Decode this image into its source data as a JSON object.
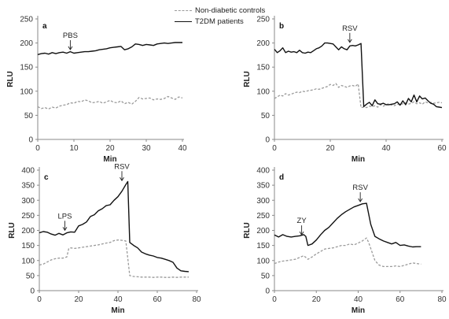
{
  "legend": {
    "items": [
      {
        "label": "Non-diabetic controls",
        "style": "dashed",
        "color": "#9a9a9a"
      },
      {
        "label": "T2DM patients",
        "style": "solid",
        "color": "#111111"
      }
    ]
  },
  "chart_data": [
    {
      "type": "line",
      "panel_label": "a",
      "xlabel": "Min",
      "ylabel": "RLU",
      "xlim": [
        0,
        40
      ],
      "ylim": [
        0,
        250
      ],
      "xticks": [
        0,
        10,
        20,
        30,
        40
      ],
      "yticks": [
        0,
        50,
        100,
        150,
        200,
        250
      ],
      "annotations": [
        {
          "text": "PBS",
          "x": 9,
          "y": 183
        }
      ],
      "series": [
        {
          "style": "dashed",
          "color": "#9a9a9a",
          "x": [
            0,
            1,
            2,
            3,
            4,
            5,
            6,
            7,
            8,
            9,
            10,
            11,
            12,
            13,
            14,
            15,
            16,
            17,
            18,
            19,
            20,
            21,
            22,
            23,
            24,
            25,
            26,
            27,
            28,
            29,
            30,
            31,
            32,
            33,
            34,
            35,
            36,
            37,
            38,
            39,
            40
          ],
          "y": [
            68,
            64,
            66,
            63,
            67,
            65,
            69,
            71,
            72,
            76,
            75,
            79,
            78,
            82,
            80,
            76,
            77,
            79,
            75,
            78,
            81,
            77,
            76,
            80,
            74,
            77,
            73,
            79,
            87,
            84,
            85,
            86,
            82,
            84,
            83,
            85,
            89,
            86,
            83,
            88,
            86
          ]
        },
        {
          "style": "solid",
          "color": "#111111",
          "x": [
            0,
            1,
            2,
            3,
            4,
            5,
            6,
            7,
            8,
            9,
            10,
            11,
            12,
            13,
            14,
            15,
            16,
            17,
            18,
            19,
            20,
            21,
            22,
            23,
            24,
            25,
            26,
            27,
            28,
            29,
            30,
            31,
            32,
            33,
            34,
            35,
            36,
            37,
            38,
            39,
            40
          ],
          "y": [
            176,
            178,
            179,
            177,
            180,
            178,
            180,
            181,
            179,
            182,
            179,
            180,
            181,
            182,
            182,
            183,
            184,
            186,
            187,
            188,
            190,
            191,
            192,
            193,
            186,
            188,
            192,
            198,
            197,
            195,
            197,
            196,
            195,
            198,
            199,
            200,
            199,
            200,
            201,
            201,
            201
          ]
        }
      ]
    },
    {
      "type": "line",
      "panel_label": "b",
      "xlabel": "Min",
      "ylabel": "RLU",
      "xlim": [
        0,
        60
      ],
      "ylim": [
        0,
        250
      ],
      "xticks": [
        0,
        20,
        40,
        60
      ],
      "yticks": [
        0,
        50,
        100,
        150,
        200,
        250
      ],
      "annotations": [
        {
          "text": "RSV",
          "x": 27,
          "y": 198
        }
      ],
      "series": [
        {
          "style": "dashed",
          "color": "#9a9a9a",
          "x": [
            0,
            1,
            2,
            3,
            4,
            5,
            6,
            7,
            8,
            9,
            10,
            11,
            12,
            13,
            14,
            15,
            16,
            17,
            18,
            19,
            20,
            21,
            22,
            23,
            24,
            25,
            26,
            27,
            28,
            29,
            30,
            31,
            32,
            33,
            34,
            35,
            36,
            37,
            38,
            39,
            40,
            41,
            42,
            43,
            44,
            45,
            46,
            47,
            48,
            49,
            50,
            51,
            52,
            53,
            54,
            55,
            56,
            57,
            58,
            59,
            60
          ],
          "y": [
            85,
            88,
            92,
            90,
            95,
            92,
            94,
            96,
            98,
            97,
            100,
            99,
            101,
            102,
            103,
            105,
            104,
            106,
            108,
            110,
            114,
            112,
            116,
            108,
            112,
            110,
            108,
            111,
            112,
            110,
            115,
            66,
            67,
            66,
            69,
            68,
            70,
            67,
            72,
            69,
            72,
            74,
            71,
            70,
            73,
            72,
            74,
            76,
            73,
            75,
            78,
            74,
            76,
            73,
            78,
            76,
            77,
            75,
            76,
            77,
            76
          ]
        },
        {
          "style": "solid",
          "color": "#111111",
          "x": [
            0,
            1,
            2,
            3,
            4,
            5,
            6,
            7,
            8,
            9,
            10,
            11,
            12,
            13,
            14,
            15,
            16,
            17,
            18,
            19,
            20,
            21,
            22,
            23,
            24,
            25,
            26,
            27,
            28,
            29,
            30,
            31,
            32,
            33,
            34,
            35,
            36,
            37,
            38,
            39,
            40,
            41,
            42,
            43,
            44,
            45,
            46,
            47,
            48,
            49,
            50,
            51,
            52,
            53,
            54,
            55,
            56,
            57,
            58,
            59,
            60
          ],
          "y": [
            187,
            180,
            184,
            190,
            180,
            183,
            181,
            182,
            180,
            185,
            180,
            179,
            181,
            180,
            184,
            188,
            190,
            194,
            200,
            200,
            199,
            198,
            192,
            186,
            192,
            188,
            186,
            194,
            195,
            194,
            196,
            199,
            68,
            73,
            77,
            70,
            82,
            74,
            73,
            75,
            72,
            72,
            73,
            74,
            78,
            71,
            80,
            72,
            85,
            78,
            92,
            78,
            90,
            84,
            86,
            80,
            75,
            73,
            68,
            67,
            66
          ]
        }
      ]
    },
    {
      "type": "line",
      "panel_label": "c",
      "xlabel": "Min",
      "ylabel": "RLU",
      "xlim": [
        0,
        80
      ],
      "ylim": [
        0,
        400
      ],
      "xticks": [
        0,
        20,
        40,
        60,
        80
      ],
      "yticks": [
        0,
        50,
        100,
        150,
        200,
        250,
        300,
        350,
        400
      ],
      "annotations": [
        {
          "text": "LPS",
          "x": 13,
          "y": 195
        },
        {
          "text": "RSV",
          "x": 42,
          "y": 360
        }
      ],
      "series": [
        {
          "style": "dashed",
          "color": "#9a9a9a",
          "x": [
            0,
            2,
            4,
            6,
            8,
            10,
            12,
            14,
            15,
            16,
            18,
            20,
            22,
            24,
            26,
            28,
            30,
            32,
            34,
            36,
            38,
            40,
            42,
            44,
            46,
            48,
            50,
            52,
            54,
            56,
            58,
            60,
            62,
            64,
            66,
            68,
            70,
            72,
            74,
            76
          ],
          "y": [
            85,
            88,
            95,
            102,
            106,
            108,
            108,
            112,
            140,
            142,
            140,
            142,
            144,
            146,
            148,
            150,
            152,
            155,
            158,
            160,
            166,
            168,
            167,
            165,
            50,
            47,
            46,
            45,
            45,
            45,
            44,
            45,
            45,
            44,
            44,
            45,
            44,
            45,
            45,
            45
          ]
        },
        {
          "style": "solid",
          "color": "#111111",
          "x": [
            0,
            2,
            4,
            6,
            8,
            10,
            12,
            14,
            16,
            18,
            20,
            22,
            24,
            26,
            28,
            30,
            32,
            34,
            36,
            38,
            40,
            42,
            44,
            45,
            46,
            48,
            50,
            52,
            54,
            56,
            58,
            60,
            62,
            64,
            66,
            68,
            70,
            72,
            74,
            76
          ],
          "y": [
            192,
            196,
            194,
            188,
            184,
            190,
            185,
            192,
            195,
            194,
            215,
            220,
            228,
            246,
            252,
            265,
            272,
            282,
            285,
            300,
            312,
            330,
            352,
            362,
            160,
            150,
            142,
            128,
            122,
            118,
            115,
            110,
            108,
            104,
            100,
            94,
            75,
            66,
            64,
            63
          ]
        }
      ]
    },
    {
      "type": "line",
      "panel_label": "d",
      "xlabel": "Min",
      "ylabel": "RLU",
      "xlim": [
        0,
        80
      ],
      "ylim": [
        0,
        400
      ],
      "xticks": [
        0,
        20,
        40,
        60,
        80
      ],
      "yticks": [
        0,
        50,
        100,
        150,
        200,
        250,
        300,
        350,
        400
      ],
      "annotations": [
        {
          "text": "ZY",
          "x": 13,
          "y": 180
        },
        {
          "text": "RSV",
          "x": 41,
          "y": 290
        }
      ],
      "series": [
        {
          "style": "dashed",
          "color": "#9a9a9a",
          "x": [
            0,
            2,
            4,
            6,
            8,
            10,
            12,
            14,
            16,
            18,
            20,
            22,
            24,
            26,
            28,
            30,
            32,
            34,
            36,
            38,
            40,
            42,
            44,
            45,
            46,
            48,
            50,
            52,
            54,
            56,
            58,
            60,
            62,
            64,
            66,
            68,
            70
          ],
          "y": [
            90,
            95,
            98,
            100,
            102,
            104,
            110,
            116,
            104,
            112,
            122,
            130,
            138,
            140,
            142,
            146,
            150,
            150,
            155,
            152,
            158,
            165,
            175,
            160,
            140,
            100,
            85,
            80,
            80,
            80,
            82,
            80,
            84,
            88,
            92,
            90,
            88
          ]
        },
        {
          "style": "solid",
          "color": "#111111",
          "x": [
            0,
            2,
            4,
            6,
            8,
            10,
            12,
            14,
            15,
            16,
            18,
            20,
            22,
            24,
            26,
            28,
            30,
            32,
            34,
            36,
            38,
            40,
            42,
            44,
            45,
            46,
            48,
            50,
            52,
            54,
            56,
            58,
            60,
            62,
            64,
            66,
            68,
            70
          ],
          "y": [
            185,
            178,
            186,
            180,
            178,
            180,
            182,
            186,
            180,
            150,
            155,
            168,
            185,
            200,
            210,
            225,
            240,
            252,
            262,
            270,
            278,
            283,
            288,
            290,
            255,
            220,
            180,
            172,
            165,
            160,
            155,
            160,
            150,
            152,
            148,
            145,
            146,
            146
          ]
        }
      ]
    }
  ]
}
